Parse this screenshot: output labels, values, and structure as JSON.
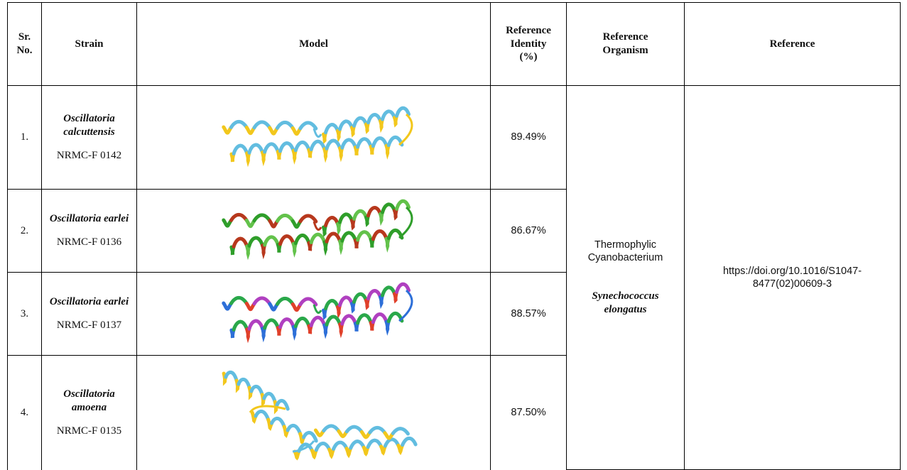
{
  "table": {
    "headers": [
      "Sr. No.",
      "Strain",
      "Model",
      "Reference Identity (%)",
      "Reference Organism",
      "Reference"
    ],
    "rows": [
      {
        "sr": "1.",
        "strain_name": "Oscillatoria calcuttensis",
        "strain_id": "NRMC-F 0142",
        "identity": "89.49%"
      },
      {
        "sr": "2.",
        "strain_name": "Oscillatoria earlei",
        "strain_id": "NRMC-F 0136",
        "identity": "86.67%"
      },
      {
        "sr": "3.",
        "strain_name": "Oscillatoria earlei",
        "strain_id": "NRMC-F 0137",
        "identity": "88.57%"
      },
      {
        "sr": "4.",
        "strain_name": "Oscillatoria amoena",
        "strain_id": "NRMC-F 0135",
        "identity": "87.50%"
      }
    ],
    "reference_organism": {
      "common": "Thermophylic Cyanobacterium",
      "scientific": "Synechococcus elongatus"
    },
    "reference": "https://doi.org/10.1016/S1047-8477(02)00609-3"
  }
}
